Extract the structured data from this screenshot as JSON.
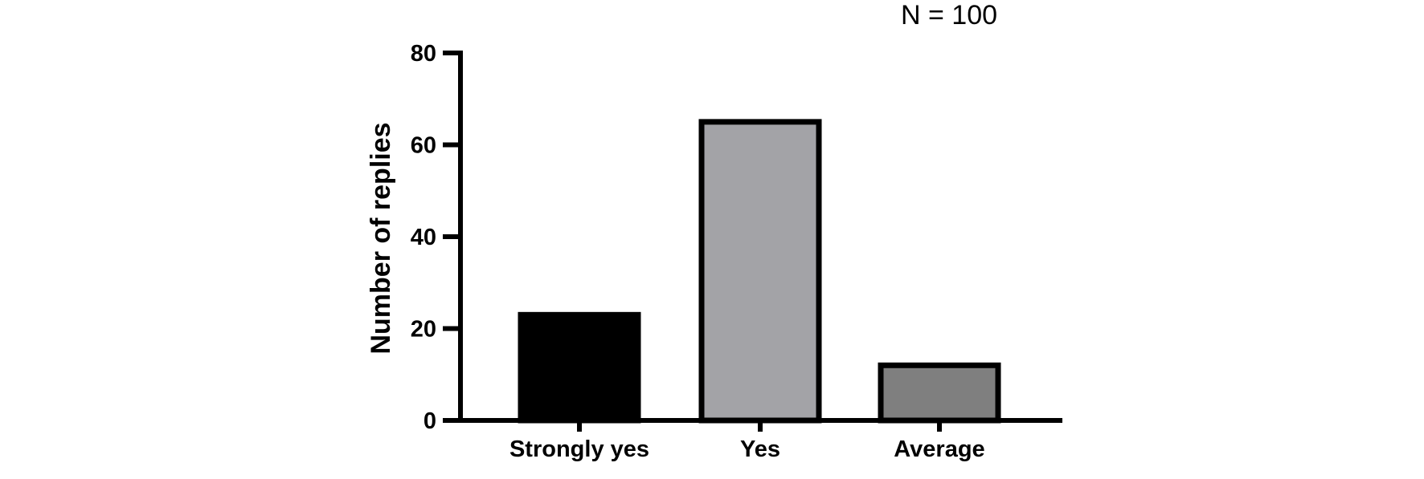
{
  "chart_data": {
    "type": "bar",
    "title": "",
    "annotation": "N = 100",
    "categories": [
      "Strongly yes",
      "Yes",
      "Average"
    ],
    "values": [
      23,
      65,
      12
    ],
    "bar_colors": [
      "#000000",
      "#a3a3a7",
      "#7f7f7f"
    ],
    "bar_stroke": "#000000",
    "xlabel": "",
    "ylabel": "Number of replies",
    "ylim": [
      0,
      80
    ],
    "yticks": [
      0,
      20,
      40,
      60,
      80
    ],
    "grid": false,
    "legend": "none"
  }
}
